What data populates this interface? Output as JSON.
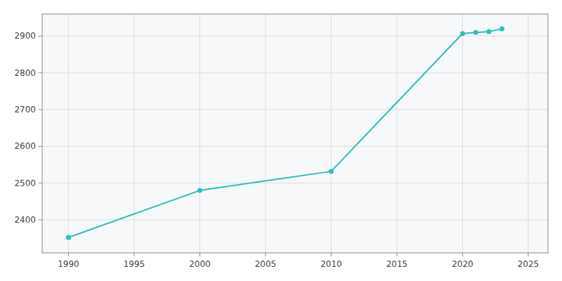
{
  "chart_data": {
    "type": "line",
    "x": [
      1990,
      2000,
      2010,
      2020,
      2021,
      2022,
      2023
    ],
    "values": [
      2352,
      2480,
      2532,
      2907,
      2910,
      2912,
      2920
    ],
    "color": "#2bbfbe",
    "marker": "circle",
    "xlim": [
      1988,
      2026.5
    ],
    "ylim": [
      2310,
      2960
    ],
    "xticks": [
      1990,
      1995,
      2000,
      2005,
      2010,
      2015,
      2020,
      2025
    ],
    "yticks": [
      2400,
      2500,
      2600,
      2700,
      2800,
      2900
    ],
    "grid": true
  }
}
